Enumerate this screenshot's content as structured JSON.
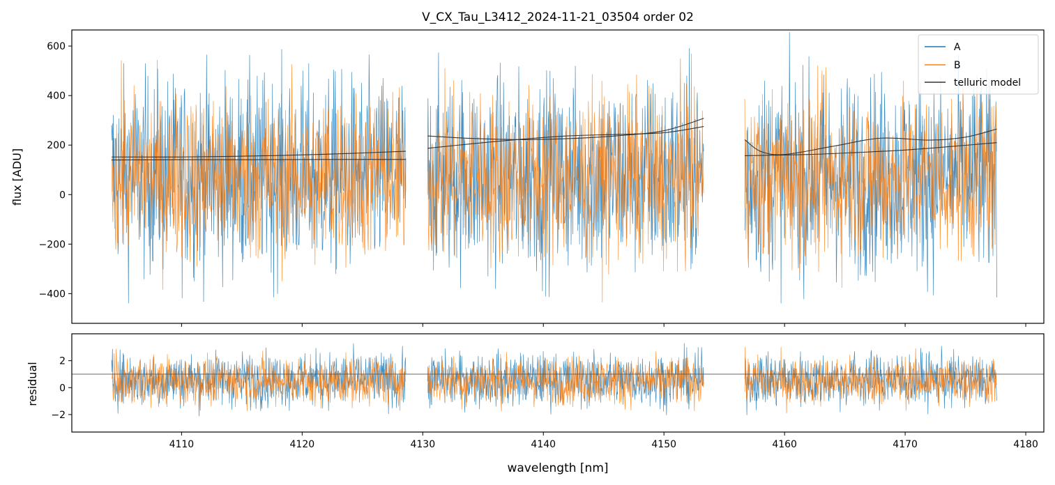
{
  "title": "V_CX_Tau_L3412_2024-11-21_03504  order 02",
  "chart_data": [
    {
      "type": "line",
      "panel": "top",
      "title": "V_CX_Tau_L3412_2024-11-21_03504  order 02",
      "xlabel": "",
      "ylabel": "flux [ADU]",
      "xlim": [
        4100.9,
        4181.5
      ],
      "ylim": [
        -520,
        665
      ],
      "yticks": [
        -400,
        -200,
        0,
        200,
        400,
        600
      ],
      "ytick_labels": [
        "−400",
        "−200",
        "0",
        "200",
        "400",
        "600"
      ],
      "xticks": [
        4110,
        4120,
        4130,
        4140,
        4150,
        4160,
        4170,
        4180
      ],
      "segments": [
        {
          "x_start": 4104.2,
          "x_end": 4128.6
        },
        {
          "x_start": 4130.4,
          "x_end": 4153.3
        },
        {
          "x_start": 4156.7,
          "x_end": 4177.6
        }
      ],
      "series": [
        {
          "name": "A",
          "color": "#1f77b4",
          "kind": "noisy spectrum",
          "center": 80,
          "spread": 200
        },
        {
          "name": "B",
          "color": "#ff7f0e",
          "kind": "noisy spectrum",
          "center": 70,
          "spread": 170
        },
        {
          "name": "telluric model",
          "color": "#333333",
          "kind": "smooth model",
          "curves": [
            {
              "x": [
                4104.2,
                4110,
                4116,
                4122,
                4128.6
              ],
              "y": [
                152,
                152,
                156,
                163,
                175
              ]
            },
            {
              "x": [
                4104.2,
                4110,
                4116,
                4122,
                4128.6
              ],
              "y": [
                140,
                141,
                141,
                142,
                142
              ]
            },
            {
              "x": [
                4130.4,
                4134,
                4138,
                4142,
                4146,
                4150,
                4153.3
              ],
              "y": [
                237,
                227,
                222,
                226,
                237,
                258,
                308
              ]
            },
            {
              "x": [
                4130.4,
                4134,
                4138,
                4142,
                4146,
                4150,
                4153.3
              ],
              "y": [
                187,
                205,
                223,
                237,
                243,
                250,
                275
              ]
            },
            {
              "x": [
                4156.7,
                4158,
                4160,
                4164,
                4168,
                4172,
                4175,
                4177.6
              ],
              "y": [
                222,
                175,
                162,
                195,
                228,
                220,
                232,
                265
              ]
            },
            {
              "x": [
                4156.7,
                4162,
                4166,
                4170,
                4174,
                4177.6
              ],
              "y": [
                157,
                162,
                170,
                180,
                195,
                210
              ]
            }
          ]
        }
      ],
      "legend": {
        "position": "top-right",
        "entries": [
          "A",
          "B",
          "telluric model"
        ]
      }
    },
    {
      "type": "line",
      "panel": "bottom",
      "xlabel": "wavelength [nm]",
      "ylabel": "residual",
      "xlim": [
        4100.9,
        4181.5
      ],
      "ylim": [
        -3.3,
        4.0
      ],
      "yticks": [
        -2,
        0,
        2
      ],
      "ytick_labels": [
        "−2",
        "0",
        "2"
      ],
      "xticks": [
        4110,
        4120,
        4130,
        4140,
        4150,
        4160,
        4170,
        4180
      ],
      "xtick_labels": [
        "4110",
        "4120",
        "4130",
        "4140",
        "4150",
        "4160",
        "4170",
        "4180"
      ],
      "reference_line": 1.0,
      "series": [
        {
          "name": "A",
          "color": "#1f77b4",
          "kind": "noisy residual",
          "center": 0.6,
          "spread": 1.0
        },
        {
          "name": "B",
          "color": "#ff7f0e",
          "kind": "noisy residual",
          "center": 0.5,
          "spread": 0.9
        }
      ]
    }
  ]
}
